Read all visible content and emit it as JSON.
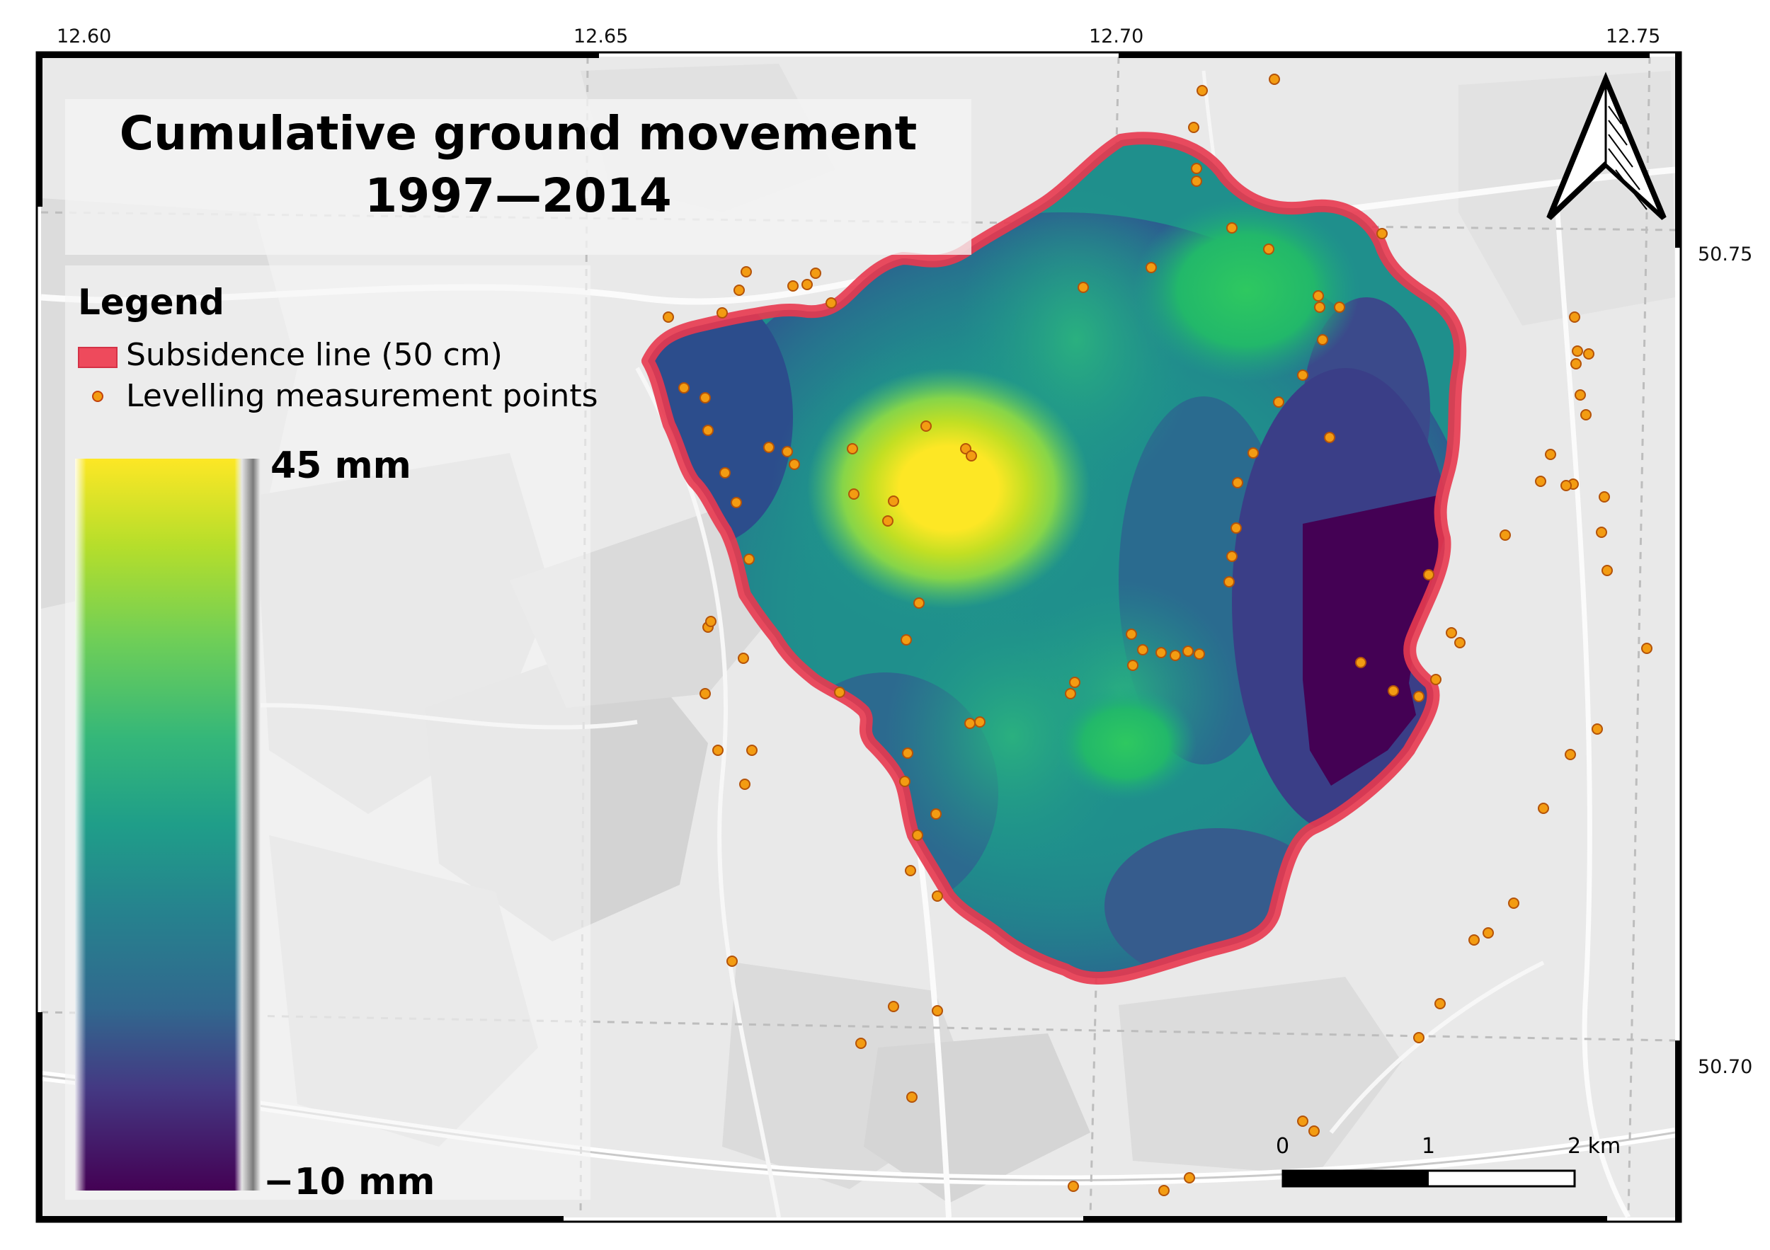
{
  "map": {
    "title_line1": "Cumulative ground movement",
    "title_line2": "1997—2014",
    "longitude_labels": [
      "12.60",
      "12.65",
      "12.70",
      "12.75"
    ],
    "latitude_labels": [
      "50.75",
      "50.70"
    ]
  },
  "legend": {
    "title": "Legend",
    "items": [
      {
        "label": "Subsidence line (50 cm)",
        "symbol": "red-outline-swatch",
        "color": "#ee4a5c"
      },
      {
        "label": "Levelling measurement points",
        "symbol": "orange-dot",
        "color": "#f39c12"
      }
    ],
    "ramp_max_label": "45 mm",
    "ramp_min_label": "−10 mm",
    "ramp_colors": [
      "#fde725",
      "#a0da39",
      "#4ac16d",
      "#1fa187",
      "#277f8e",
      "#365c8d",
      "#46327e",
      "#440154"
    ]
  },
  "scale_bar": {
    "labels": [
      "0",
      "1",
      "2 km"
    ]
  },
  "north_arrow": {
    "icon": "north-arrow-icon"
  },
  "colors": {
    "subsidence_outline": "#e8394f",
    "measurement_point": "#f39c12",
    "basemap": "#e9e9e9"
  }
}
